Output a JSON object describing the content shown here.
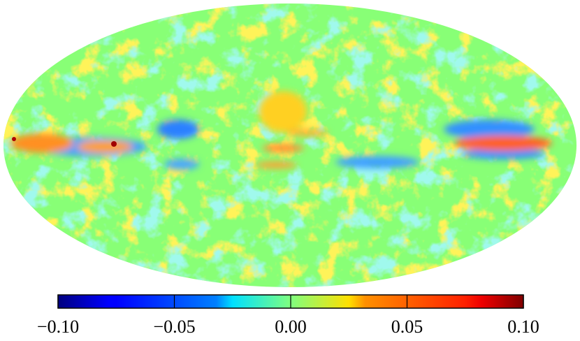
{
  "chart_data": {
    "type": "colorbar-map",
    "colormap": "jet",
    "clim": [
      -0.1,
      0.1
    ],
    "ticks": [
      {
        "value": -0.1,
        "label": "−0.10"
      },
      {
        "value": -0.05,
        "label": "−0.05"
      },
      {
        "value": 0,
        "label": "0.00"
      },
      {
        "value": 0.05,
        "label": "0.05"
      },
      {
        "value": 0.1,
        "label": "0.10"
      }
    ]
  }
}
